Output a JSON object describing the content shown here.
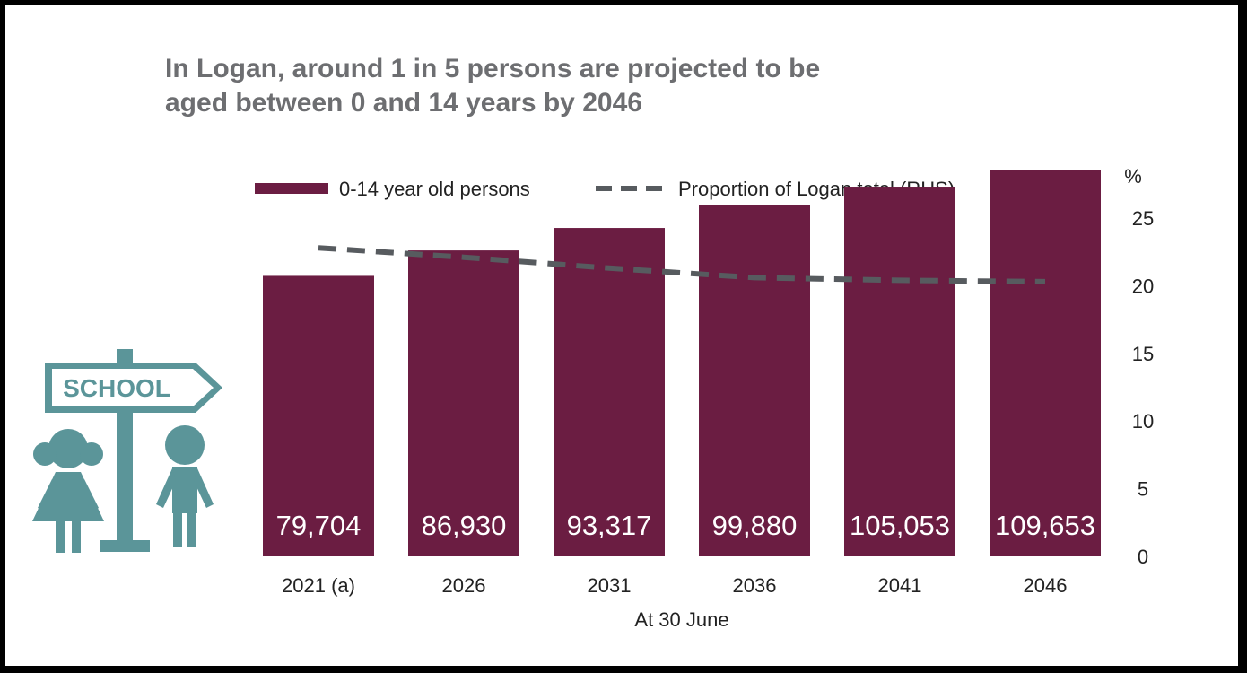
{
  "chart_data": {
    "type": "bar",
    "title": [
      "In Logan, around 1 in 5 persons are projected to be",
      "aged between 0 and 14 years by 2046"
    ],
    "categories": [
      "2021 (a)",
      "2026",
      "2031",
      "2036",
      "2041",
      "2046"
    ],
    "series": [
      {
        "name": "0-14 year old persons",
        "kind": "bar",
        "axis": "left",
        "values": [
          79704,
          86930,
          93317,
          99880,
          105053,
          109653
        ],
        "labels": [
          "79,704",
          "86,930",
          "93,317",
          "99,880",
          "105,053",
          "109,653"
        ]
      },
      {
        "name": "Proportion of Logan total (RHS)",
        "kind": "line-dashed",
        "axis": "right",
        "values": [
          22.8,
          22.1,
          21.3,
          20.6,
          20.4,
          20.3
        ]
      }
    ],
    "xlabel": "At 30 June",
    "ylabel_right": "%",
    "right_axis": {
      "ticks": [
        0,
        5,
        10,
        15,
        20,
        25
      ],
      "ylim": [
        0,
        25
      ]
    },
    "left_axis": {
      "ylim": [
        0,
        120000
      ]
    },
    "legend": "top",
    "grid": false,
    "colors": {
      "bar": "#6b1d42",
      "line": "#575b5f",
      "title": "#6d6e71",
      "icon": "#5b9599"
    }
  },
  "illustration": {
    "sign_text": "SCHOOL"
  }
}
